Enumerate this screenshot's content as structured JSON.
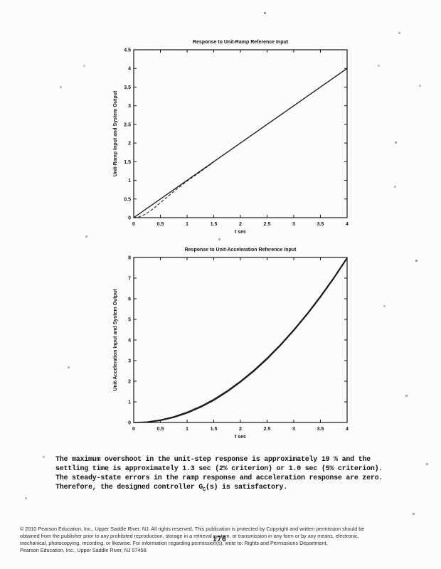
{
  "page": {
    "page_number": "176"
  },
  "analysis_text": {
    "lines": [
      "The maximum overshoot in the unit-step response is approximately 19 % and the",
      "settling time is approximately 1.3 sec (2% criterion) or 1.0 sec (5% criterion).",
      "The steady-state errors in the ramp response and acceleration response are zero."
    ],
    "last_line": {
      "before_sub": "Therefore, the designed controller G",
      "sub": "C",
      "after_sub": "(s) is satisfactory."
    }
  },
  "footer": {
    "lines": [
      "© 2010 Pearson Education, Inc., Upper Saddle River, NJ.  All rights reserved. This publication is protected by Copyright and written permission should be",
      "obtained from the publisher prior to any prohibited reproduction, storage in a retrieval system, or transmission in any form or by any means, electronic,",
      "mechanical, photocopying, recording, or likewise. For information  regarding permission(s), write to: Rights and Permissions Department,",
      "Pearson Education, Inc., Upper Saddle River, NJ 07458."
    ]
  },
  "chart_data": [
    {
      "type": "line",
      "title": "Response to Unit-Ramp Reference Input",
      "xlabel": "t sec",
      "ylabel": "Unit-Ramp Input and System Output",
      "xlim": [
        0,
        4
      ],
      "ylim": [
        0,
        4.5
      ],
      "xticks": [
        0,
        0.5,
        1,
        1.5,
        2,
        2.5,
        3,
        3.5,
        4
      ],
      "yticks": [
        0,
        0.5,
        1,
        1.5,
        2,
        2.5,
        3,
        3.5,
        4,
        4.5
      ],
      "grid": false,
      "legend": "none",
      "line_color": "#161616",
      "series": [
        {
          "name": "unit-ramp input",
          "style": "solid",
          "x": [
            0,
            4
          ],
          "y": [
            0,
            4
          ]
        },
        {
          "name": "system output",
          "style": "dashed",
          "x": [
            0,
            0.1,
            0.2,
            0.3,
            0.4,
            0.5,
            0.6,
            0.7,
            0.8,
            0.9,
            1.0,
            1.2,
            1.5
          ],
          "y": [
            0,
            0.02,
            0.08,
            0.17,
            0.28,
            0.4,
            0.52,
            0.64,
            0.76,
            0.87,
            0.98,
            1.18,
            1.49
          ]
        }
      ]
    },
    {
      "type": "line",
      "title": "Response to Unit-Acceleration Reference Input",
      "xlabel": "t sec",
      "ylabel": "Unit-Acceleration Input and System Output",
      "xlim": [
        0,
        4
      ],
      "ylim": [
        0,
        8
      ],
      "xticks": [
        0,
        0.5,
        1,
        1.5,
        2,
        2.5,
        3,
        3.5,
        4
      ],
      "yticks": [
        0,
        1,
        2,
        3,
        4,
        5,
        6,
        7,
        8
      ],
      "grid": false,
      "legend": "none",
      "line_color": "#161616",
      "series": [
        {
          "name": "unit-acceleration input",
          "style": "solid",
          "x": [
            0,
            0.25,
            0.5,
            0.75,
            1,
            1.25,
            1.5,
            1.75,
            2,
            2.25,
            2.5,
            2.75,
            3,
            3.25,
            3.5,
            3.75,
            4
          ],
          "y": [
            0,
            0.031,
            0.125,
            0.281,
            0.5,
            0.781,
            1.125,
            1.531,
            2,
            2.531,
            3.125,
            3.781,
            4.5,
            5.281,
            6.125,
            7.031,
            8
          ]
        },
        {
          "name": "system output",
          "style": "solid",
          "x": [
            0,
            0.25,
            0.5,
            0.75,
            1,
            1.25,
            1.5,
            1.75,
            2,
            2.25,
            2.5,
            2.75,
            3,
            3.25,
            3.5,
            3.75,
            4
          ],
          "y": [
            0,
            0.01,
            0.09,
            0.24,
            0.45,
            0.73,
            1.07,
            1.48,
            1.95,
            2.48,
            3.07,
            3.73,
            4.45,
            5.23,
            6.07,
            6.98,
            7.95
          ]
        }
      ]
    }
  ]
}
